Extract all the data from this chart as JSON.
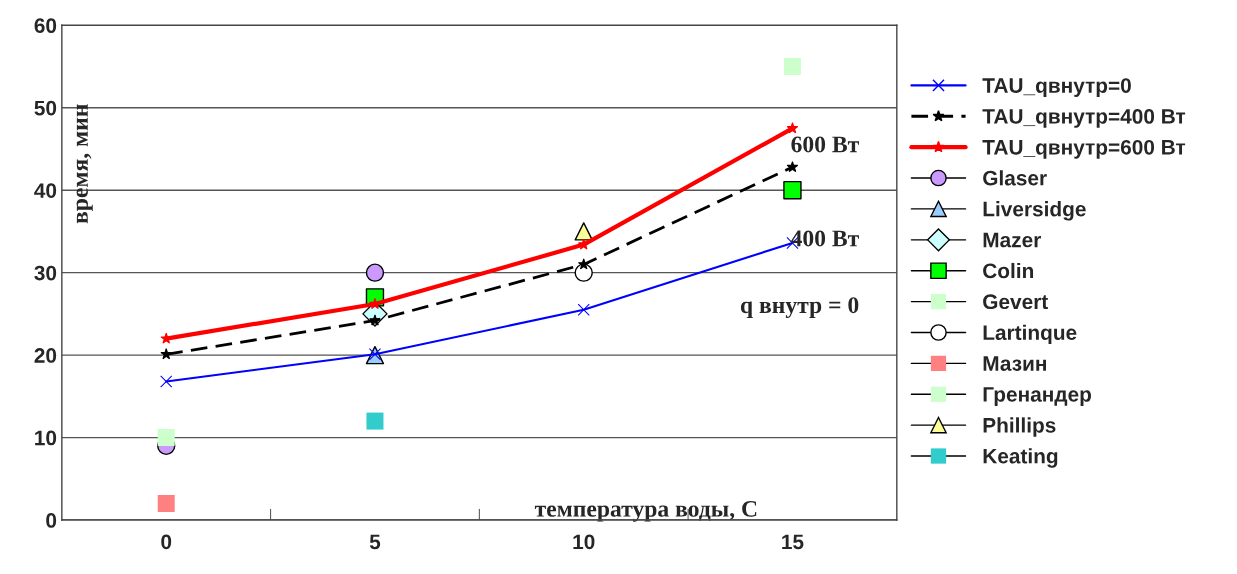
{
  "chart_data": {
    "type": "line",
    "xlabel": "температура воды, С",
    "ylabel": "время, мин",
    "categories": [
      "0",
      "5",
      "10",
      "15"
    ],
    "ylim": [
      0,
      60
    ],
    "yticks": [
      0,
      10,
      20,
      30,
      40,
      50,
      60
    ],
    "grid": "y",
    "legend": "right",
    "series": [
      {
        "name": "TAU_qвнутр=0",
        "color": "#0000ff",
        "marker": "cross",
        "line_style": "solid",
        "values": [
          16.8,
          20.1,
          25.5,
          33.6
        ]
      },
      {
        "name": "TAU_qвнутр=400 Вт",
        "color": "#000000",
        "marker": "star",
        "line_style": "dashed",
        "values": [
          20.1,
          24.2,
          31,
          42.8
        ]
      },
      {
        "name": "TAU_qвнутр=600 Вт",
        "color": "#ff0000",
        "marker": "star",
        "line_style": "solid",
        "values": [
          22,
          26.2,
          33.4,
          47.5
        ]
      },
      {
        "name": "Glaser",
        "type": "scatter",
        "color": "#cc99ff",
        "marker": "circle",
        "values": [
          9,
          30,
          null,
          null
        ]
      },
      {
        "name": "Liversidge",
        "type": "scatter",
        "color": "#99ccff",
        "marker": "triangle",
        "values": [
          null,
          20,
          null,
          null
        ]
      },
      {
        "name": "Mazer",
        "type": "scatter",
        "color": "#ccffff",
        "marker": "diamond",
        "values": [
          null,
          25,
          null,
          null
        ]
      },
      {
        "name": "Colin",
        "type": "scatter",
        "color": "#00ff00",
        "marker": "square",
        "values": [
          null,
          27,
          null,
          40
        ]
      },
      {
        "name": "Gevert",
        "type": "scatter",
        "color": "#ccffcc",
        "marker": "square",
        "values": [
          null,
          null,
          null,
          55
        ]
      },
      {
        "name": "Lartinque",
        "type": "scatter",
        "color": "#ffffff",
        "marker": "circle",
        "values": [
          null,
          null,
          30,
          null
        ]
      },
      {
        "name": "Мазин",
        "type": "scatter",
        "color": "#ff8080",
        "marker": "square",
        "values": [
          2,
          null,
          null,
          null
        ]
      },
      {
        "name": "Гренандер",
        "type": "scatter",
        "color": "#ccffcc",
        "marker": "square",
        "values": [
          10,
          null,
          null,
          null
        ]
      },
      {
        "name": "Phillips",
        "type": "scatter",
        "color": "#ffff99",
        "marker": "triangle",
        "values": [
          null,
          null,
          35,
          null
        ]
      },
      {
        "name": "Keating",
        "type": "scatter",
        "color": "#33cccc",
        "marker": "square",
        "values": [
          null,
          12,
          null,
          null
        ]
      }
    ],
    "annotations": [
      "600 Вт",
      "400 Вт",
      "q внутр = 0"
    ]
  }
}
